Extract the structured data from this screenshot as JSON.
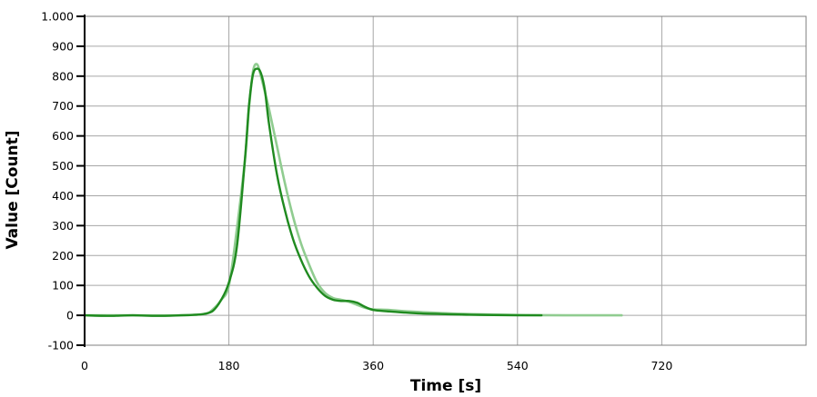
{
  "chart_data": {
    "type": "line",
    "title": "",
    "xlabel": "Time [s]",
    "ylabel": "Value [Count]",
    "xlim": [
      0,
      900
    ],
    "ylim": [
      -100,
      1000
    ],
    "x_ticks": [
      0,
      180,
      360,
      540,
      720
    ],
    "x_tick_labels": [
      "0",
      "180",
      "360",
      "540",
      "720"
    ],
    "y_ticks": [
      -100,
      0,
      100,
      200,
      300,
      400,
      500,
      600,
      700,
      800,
      900,
      1000
    ],
    "y_tick_labels": [
      "-100",
      "0",
      "100",
      "200",
      "300",
      "400",
      "500",
      "600",
      "700",
      "800",
      "900",
      "1.000"
    ],
    "grid": true,
    "legend": "none",
    "series": [
      {
        "color": "#1f8a1f",
        "x": [
          0,
          30,
          60,
          90,
          120,
          140,
          150,
          160,
          170,
          180,
          190,
          200,
          205,
          210,
          215,
          220,
          225,
          230,
          240,
          250,
          260,
          270,
          280,
          290,
          300,
          310,
          320,
          330,
          340,
          350,
          360,
          380,
          400,
          420,
          450,
          480,
          510,
          540,
          570
        ],
        "y": [
          0,
          -2,
          0,
          -2,
          0,
          2,
          5,
          15,
          50,
          110,
          230,
          520,
          700,
          805,
          825,
          810,
          750,
          640,
          470,
          350,
          255,
          185,
          130,
          92,
          65,
          52,
          48,
          48,
          42,
          28,
          18,
          13,
          9,
          6,
          4,
          2,
          1,
          0,
          0
        ]
      },
      {
        "color": "#90cc90",
        "x": [
          0,
          60,
          120,
          150,
          160,
          170,
          180,
          190,
          200,
          205,
          210,
          215,
          220,
          225,
          230,
          240,
          250,
          260,
          270,
          280,
          290,
          300,
          310,
          320,
          330,
          340,
          350,
          360,
          380,
          400,
          450,
          500,
          550,
          600,
          670
        ],
        "y": [
          0,
          0,
          0,
          5,
          20,
          50,
          100,
          290,
          520,
          690,
          815,
          840,
          800,
          745,
          690,
          565,
          440,
          330,
          240,
          170,
          110,
          75,
          58,
          52,
          45,
          35,
          25,
          20,
          18,
          14,
          7,
          3,
          1,
          0,
          0
        ]
      }
    ]
  }
}
